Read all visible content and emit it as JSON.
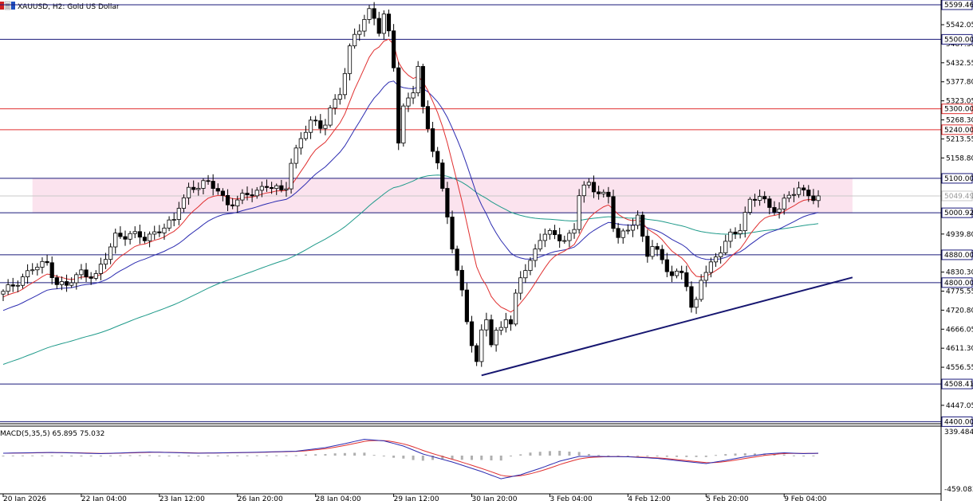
{
  "header": {
    "title": "XAUUSD, H2:  Gold US Dollar"
  },
  "price_axis": {
    "ticks": [
      "5542.05",
      "5487.30",
      "5432.55",
      "5377.80",
      "5323.05",
      "5268.30",
      "5213.55",
      "5158.80",
      "5104.05",
      "5049.30",
      "4994.55",
      "4939.80",
      "4885.05",
      "4830.30",
      "4775.55",
      "4720.80",
      "4666.05",
      "4611.30",
      "4556.55",
      "4501.80",
      "4447.05"
    ],
    "tick_values": [
      5542.05,
      5487.3,
      5432.55,
      5377.8,
      5323.05,
      5268.3,
      5213.55,
      5158.8,
      5104.05,
      5049.3,
      4994.55,
      4939.8,
      4885.05,
      4830.3,
      4775.55,
      4720.8,
      4666.05,
      4611.3,
      4556.55,
      4501.8,
      4447.05
    ],
    "ylim": [
      4394,
      5604
    ]
  },
  "level_lines": [
    {
      "label": "5599.46",
      "value": 5599.46,
      "color": "#1a1a7a"
    },
    {
      "label": "5500.00",
      "value": 5500.0,
      "color": "#1a1a7a"
    },
    {
      "label": "5300.00",
      "value": 5300.0,
      "color": "#e03030"
    },
    {
      "label": "5240.00",
      "value": 5240.0,
      "color": "#e03030"
    },
    {
      "label": "5100.00",
      "value": 5100.0,
      "color": "#1a1a7a"
    },
    {
      "label": "5000.92",
      "value": 5000.92,
      "color": "#1a1a7a"
    },
    {
      "label": "4880.00",
      "value": 4880.0,
      "color": "#1a1a7a"
    },
    {
      "label": "4800.00",
      "value": 4800.0,
      "color": "#1a1a7a"
    },
    {
      "label": "4508.41",
      "value": 4508.41,
      "color": "#1a1a7a"
    },
    {
      "label": "4400.00",
      "value": 4400.0,
      "color": "#1a1a7a"
    }
  ],
  "current_price": {
    "label": "5049.49",
    "value": 5049.49
  },
  "macd": {
    "label": "MACD(5,35,5) 65.895 75.032",
    "top_label": "339.484",
    "bottom_label": "-459.083",
    "ylim": [
      -459.083,
      339.484
    ]
  },
  "time_axis": {
    "labels": [
      "20 Jan 2026",
      "22 Jan 04:00",
      "23 Jan 12:00",
      "26 Jan 20:00",
      "28 Jan 04:00",
      "29 Jan 12:00",
      "30 Jan 20:00",
      "3 Feb 04:00",
      "4 Feb 12:00",
      "5 Feb 20:00",
      "9 Feb 04:00"
    ],
    "bar_index": [
      0,
      16,
      32,
      48,
      64,
      80,
      96,
      112,
      128,
      144,
      160
    ]
  },
  "colors": {
    "bull": "#ffffff",
    "bear": "#000000",
    "ma_fast": "#e03030",
    "ma_mid": "#2b2bb0",
    "ma_slow": "#1f9a8a",
    "zone_fill": "#fbe3ee",
    "trendline": "#161670",
    "macd_line": "#2b2bb0",
    "macd_signal": "#e03030",
    "macd_hist": "#b0b0b0"
  },
  "chart_data": {
    "type": "candlestick",
    "symbol": "XAUUSD",
    "timeframe": "H2",
    "ylim": [
      4394,
      5604
    ],
    "close_anchors": [
      [
        0,
        4770
      ],
      [
        3,
        4805
      ],
      [
        6,
        4840
      ],
      [
        9,
        4855
      ],
      [
        11,
        4800
      ],
      [
        13,
        4790
      ],
      [
        16,
        4830
      ],
      [
        19,
        4820
      ],
      [
        21,
        4870
      ],
      [
        23,
        4935
      ],
      [
        26,
        4940
      ],
      [
        29,
        4925
      ],
      [
        32,
        4955
      ],
      [
        35,
        4975
      ],
      [
        36,
        5020
      ],
      [
        38,
        5070
      ],
      [
        41,
        5085
      ],
      [
        44,
        5070
      ],
      [
        46,
        5025
      ],
      [
        48,
        5035
      ],
      [
        51,
        5060
      ],
      [
        54,
        5080
      ],
      [
        57,
        5060
      ],
      [
        58,
        5080
      ],
      [
        59,
        5150
      ],
      [
        61,
        5215
      ],
      [
        63,
        5260
      ],
      [
        65,
        5250
      ],
      [
        66,
        5265
      ],
      [
        67,
        5300
      ],
      [
        69,
        5345
      ],
      [
        70,
        5400
      ],
      [
        71,
        5470
      ],
      [
        72,
        5515
      ],
      [
        74,
        5560
      ],
      [
        75,
        5580
      ],
      [
        76,
        5560
      ],
      [
        77,
        5520
      ],
      [
        78,
        5565
      ],
      [
        79,
        5520
      ],
      [
        80,
        5430
      ],
      [
        81,
        5210
      ],
      [
        82,
        5300
      ],
      [
        84,
        5350
      ],
      [
        85,
        5420
      ],
      [
        86,
        5300
      ],
      [
        87,
        5250
      ],
      [
        88,
        5190
      ],
      [
        89,
        5140
      ],
      [
        90,
        5060
      ],
      [
        91,
        4990
      ],
      [
        92,
        4900
      ],
      [
        93,
        4830
      ],
      [
        94,
        4780
      ],
      [
        95,
        4700
      ],
      [
        96,
        4620
      ],
      [
        97,
        4560
      ],
      [
        98,
        4660
      ],
      [
        99,
        4700
      ],
      [
        100,
        4620
      ],
      [
        101,
        4660
      ],
      [
        103,
        4700
      ],
      [
        104,
        4670
      ],
      [
        105,
        4760
      ],
      [
        106,
        4820
      ],
      [
        107,
        4840
      ],
      [
        108,
        4860
      ],
      [
        109,
        4900
      ],
      [
        110,
        4930
      ],
      [
        113,
        4940
      ],
      [
        115,
        4920
      ],
      [
        117,
        4960
      ],
      [
        118,
        5050
      ],
      [
        120,
        5085
      ],
      [
        122,
        5060
      ],
      [
        124,
        5050
      ],
      [
        125,
        4960
      ],
      [
        126,
        4920
      ],
      [
        128,
        4960
      ],
      [
        130,
        4990
      ],
      [
        131,
        4930
      ],
      [
        132,
        4880
      ],
      [
        133,
        4900
      ],
      [
        135,
        4870
      ],
      [
        137,
        4820
      ],
      [
        139,
        4830
      ],
      [
        140,
        4790
      ],
      [
        141,
        4720
      ],
      [
        142,
        4750
      ],
      [
        143,
        4820
      ],
      [
        145,
        4850
      ],
      [
        146,
        4870
      ],
      [
        147,
        4890
      ],
      [
        149,
        4940
      ],
      [
        151,
        4960
      ],
      [
        153,
        5030
      ],
      [
        155,
        5050
      ],
      [
        157,
        5020
      ],
      [
        159,
        5010
      ],
      [
        161,
        5050
      ],
      [
        163,
        5070
      ],
      [
        165,
        5060
      ],
      [
        166,
        5040
      ],
      [
        167,
        5049.49
      ]
    ],
    "macd_anchors": [
      [
        0,
        30
      ],
      [
        10,
        40
      ],
      [
        20,
        25
      ],
      [
        30,
        45
      ],
      [
        40,
        30
      ],
      [
        50,
        40
      ],
      [
        60,
        55
      ],
      [
        66,
        100
      ],
      [
        70,
        150
      ],
      [
        74,
        205
      ],
      [
        78,
        185
      ],
      [
        82,
        120
      ],
      [
        86,
        20
      ],
      [
        92,
        -80
      ],
      [
        98,
        -200
      ],
      [
        102,
        -290
      ],
      [
        106,
        -240
      ],
      [
        110,
        -160
      ],
      [
        114,
        -70
      ],
      [
        118,
        -10
      ],
      [
        122,
        -10
      ],
      [
        128,
        -15
      ],
      [
        134,
        -35
      ],
      [
        140,
        -75
      ],
      [
        144,
        -100
      ],
      [
        148,
        -60
      ],
      [
        152,
        -15
      ],
      [
        156,
        20
      ],
      [
        160,
        35
      ],
      [
        164,
        25
      ],
      [
        167,
        30
      ]
    ],
    "trendline": {
      "from": [
        98,
        4533
      ],
      "to": [
        174,
        4815
      ]
    },
    "zone": {
      "from_bar": 6,
      "to_bar": 174,
      "top": 5100,
      "bottom": 5000
    }
  }
}
